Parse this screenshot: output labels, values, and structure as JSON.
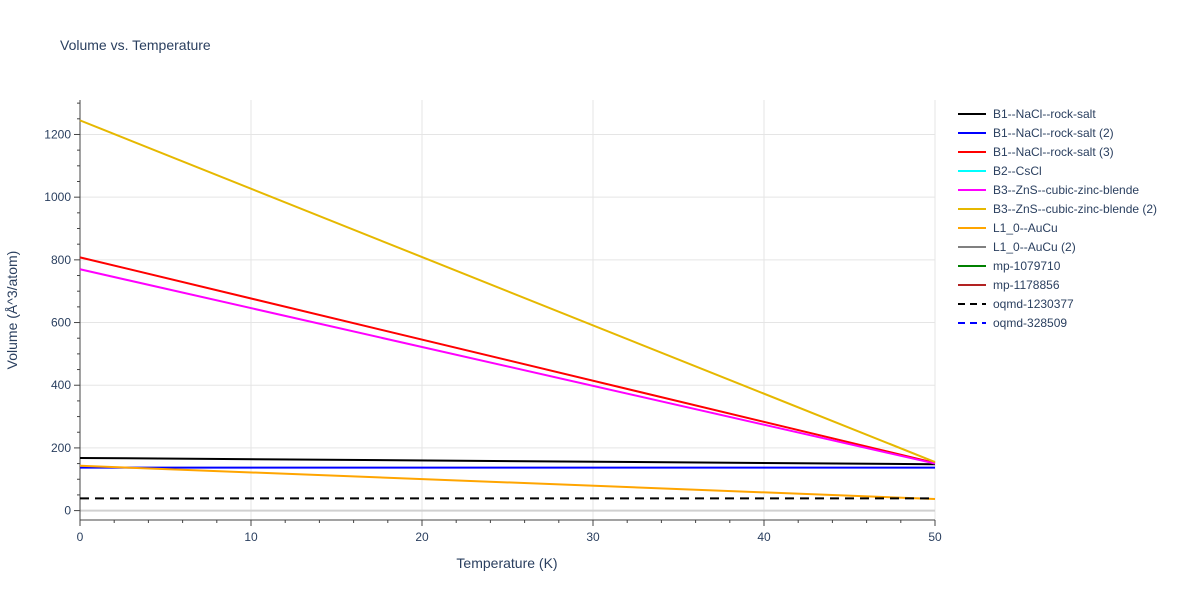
{
  "chart_data": {
    "type": "line",
    "title": "Volume vs. Temperature",
    "xlabel": "Temperature (K)",
    "ylabel": "Volume (Å^3/atom)",
    "xlim": [
      0,
      50
    ],
    "ylim": [
      -30,
      1310
    ],
    "x_ticks": [
      0,
      10,
      20,
      30,
      40,
      50
    ],
    "y_ticks": [
      0,
      200,
      400,
      600,
      800,
      1000,
      1200
    ],
    "grid": true,
    "legend_position": "right",
    "series": [
      {
        "name": "B1--NaCl--rock-salt",
        "color": "#000000",
        "dash": "solid",
        "x": [
          0,
          50
        ],
        "y": [
          168,
          148
        ]
      },
      {
        "name": "B1--NaCl--rock-salt (2)",
        "color": "#0000ff",
        "dash": "solid",
        "x": [
          0,
          50
        ],
        "y": [
          137,
          137
        ]
      },
      {
        "name": "B1--NaCl--rock-salt (3)",
        "color": "#ff0000",
        "dash": "solid",
        "x": [
          0,
          50
        ],
        "y": [
          808,
          152
        ]
      },
      {
        "name": "B2--CsCl",
        "color": "#00ffff",
        "dash": "solid",
        "x": [],
        "y": []
      },
      {
        "name": "B3--ZnS--cubic-zinc-blende",
        "color": "#ff00ff",
        "dash": "solid",
        "x": [
          0,
          50
        ],
        "y": [
          770,
          150
        ]
      },
      {
        "name": "B3--ZnS--cubic-zinc-blende (2)",
        "color": "#e6b800",
        "dash": "solid",
        "x": [
          0,
          50
        ],
        "y": [
          1245,
          155
        ]
      },
      {
        "name": "L1_0--AuCu",
        "color": "#ffa500",
        "dash": "solid",
        "x": [
          0,
          50
        ],
        "y": [
          143,
          37
        ]
      },
      {
        "name": "L1_0--AuCu (2)",
        "color": "#808080",
        "dash": "solid",
        "x": [],
        "y": []
      },
      {
        "name": "mp-1079710",
        "color": "#008000",
        "dash": "solid",
        "x": [],
        "y": []
      },
      {
        "name": "mp-1178856",
        "color": "#b22222",
        "dash": "solid",
        "x": [],
        "y": []
      },
      {
        "name": "oqmd-1230377",
        "color": "#000000",
        "dash": "dash",
        "x": [
          0,
          50
        ],
        "y": [
          39,
          39
        ]
      },
      {
        "name": "oqmd-328509",
        "color": "#0000ff",
        "dash": "dash",
        "x": [],
        "y": []
      }
    ]
  }
}
